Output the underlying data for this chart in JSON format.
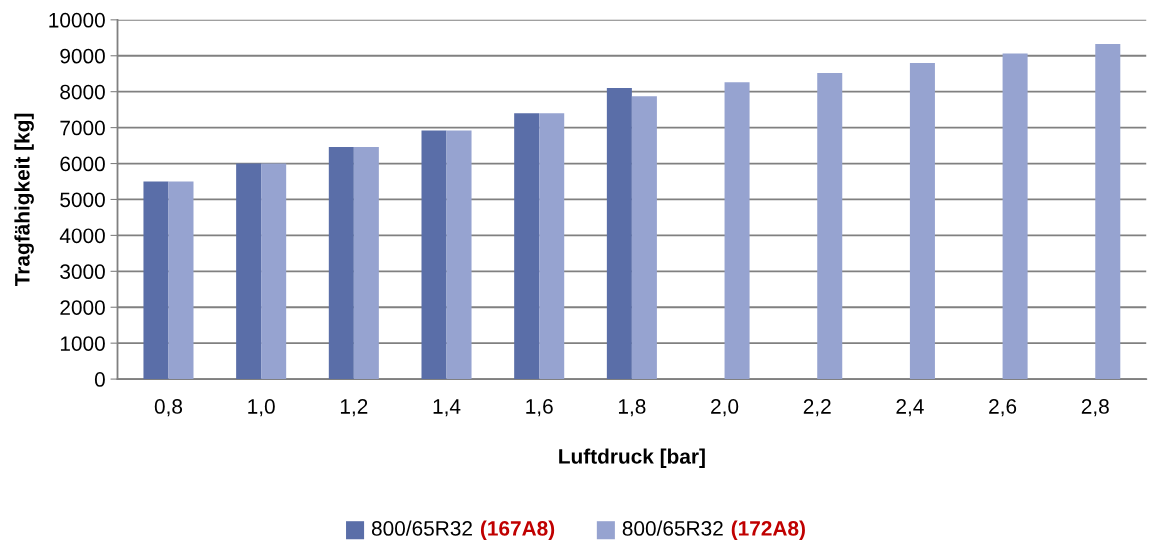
{
  "chart_data": {
    "type": "bar",
    "xlabel": "Luftdruck [bar]",
    "ylabel": "Tragfähigkeit [kg]",
    "categories": [
      "0,8",
      "1,0",
      "1,2",
      "1,4",
      "1,6",
      "1,8",
      "2,0",
      "2,2",
      "2,4",
      "2,6",
      "2,8"
    ],
    "series": [
      {
        "name": "800/65R32 (167A8)",
        "color": "#5a6ea8",
        "values": [
          5500,
          6000,
          6460,
          6920,
          7400,
          8100,
          null,
          null,
          null,
          null,
          null
        ]
      },
      {
        "name": "800/65R32 (172A8)",
        "color": "#96a3d0",
        "values": [
          5500,
          6000,
          6460,
          6920,
          7400,
          7870,
          8260,
          8520,
          8800,
          9060,
          9330
        ]
      }
    ],
    "ylim": [
      0,
      10000
    ],
    "yticks": [
      0,
      1000,
      2000,
      3000,
      4000,
      5000,
      6000,
      7000,
      8000,
      9000,
      10000
    ],
    "grid": "y",
    "legend": "bottom"
  }
}
